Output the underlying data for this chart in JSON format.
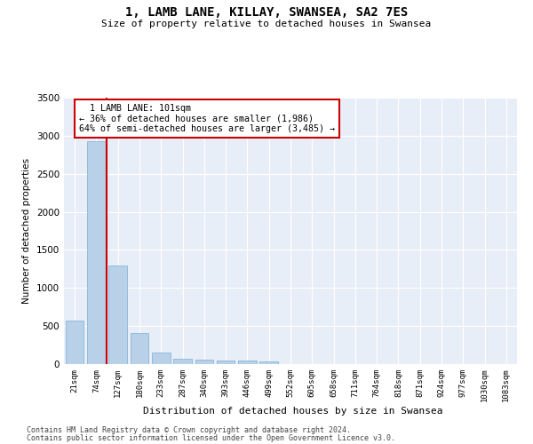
{
  "title": "1, LAMB LANE, KILLAY, SWANSEA, SA2 7ES",
  "subtitle": "Size of property relative to detached houses in Swansea",
  "xlabel": "Distribution of detached houses by size in Swansea",
  "ylabel": "Number of detached properties",
  "bar_color": "#b8d0e8",
  "bar_edge_color": "#7aafd4",
  "background_color": "#e8eef8",
  "grid_color": "#ffffff",
  "categories": [
    "21sqm",
    "74sqm",
    "127sqm",
    "180sqm",
    "233sqm",
    "287sqm",
    "340sqm",
    "393sqm",
    "446sqm",
    "499sqm",
    "552sqm",
    "605sqm",
    "658sqm",
    "711sqm",
    "764sqm",
    "818sqm",
    "871sqm",
    "924sqm",
    "977sqm",
    "1030sqm",
    "1083sqm"
  ],
  "values": [
    570,
    2930,
    1300,
    410,
    155,
    75,
    55,
    50,
    45,
    35,
    0,
    0,
    0,
    0,
    0,
    0,
    0,
    0,
    0,
    0,
    0
  ],
  "ylim": [
    0,
    3500
  ],
  "yticks": [
    0,
    500,
    1000,
    1500,
    2000,
    2500,
    3000,
    3500
  ],
  "property_label": "1 LAMB LANE: 101sqm",
  "pct_smaller": "36% of detached houses are smaller (1,986)",
  "pct_larger": "64% of semi-detached houses are larger (3,485) →",
  "arrow_smaller": "← ",
  "annotation_box_color": "#cc0000",
  "vline_color": "#cc0000",
  "vline_x": 1.48,
  "footer1": "Contains HM Land Registry data © Crown copyright and database right 2024.",
  "footer2": "Contains public sector information licensed under the Open Government Licence v3.0."
}
